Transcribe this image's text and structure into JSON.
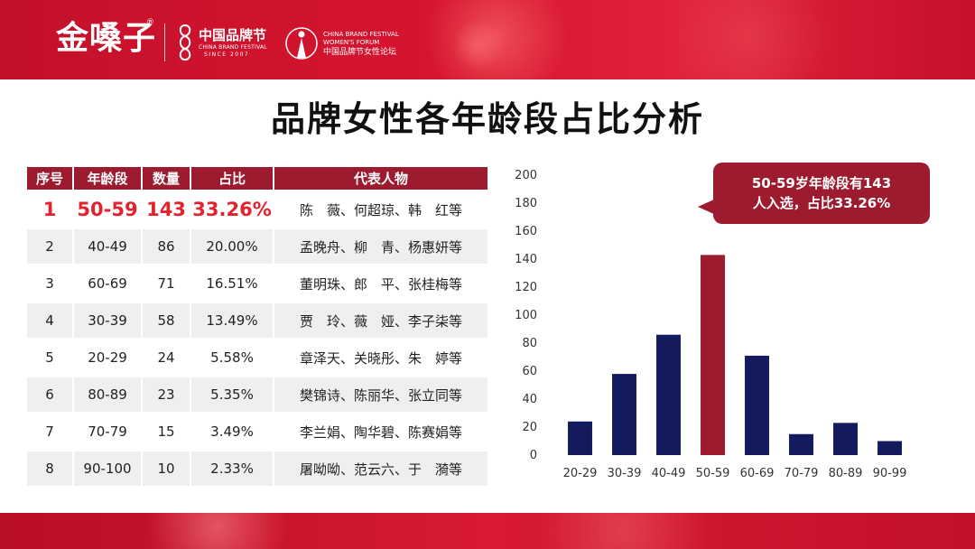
{
  "brand": {
    "logo_text": "金嗓子",
    "logo_reg": "®",
    "festival_cn": "中国品牌节",
    "festival_en": "CHINA BRAND FESTIVAL",
    "festival_since": "SINCE 2007",
    "forum_en_line1": "CHINA BRAND FESTIVAL",
    "forum_en_line2": "WOMEN'S FORUM",
    "forum_cn": "中国品牌节女性论坛"
  },
  "colors": {
    "header_red": "#d6152f",
    "table_header": "#9c1b2f",
    "highlight_text": "#e0232f",
    "bar_default": "#131a5e",
    "bar_highlight": "#9c1b2f"
  },
  "title": "品牌女性各年龄段占比分析",
  "table": {
    "headers": [
      "序号",
      "年龄段",
      "数量",
      "占比",
      "代表人物"
    ],
    "rows": [
      {
        "no": "1",
        "age": "50-59",
        "count": "143",
        "pct": "33.26%",
        "people": "陈　薇、何超琼、韩　红等"
      },
      {
        "no": "2",
        "age": "40-49",
        "count": "86",
        "pct": "20.00%",
        "people": "孟晚舟、柳　青、杨惠妍等"
      },
      {
        "no": "3",
        "age": "60-69",
        "count": "71",
        "pct": "16.51%",
        "people": "董明珠、郎　平、张桂梅等"
      },
      {
        "no": "4",
        "age": "30-39",
        "count": "58",
        "pct": "13.49%",
        "people": "贾　玲、薇　娅、李子柒等"
      },
      {
        "no": "5",
        "age": "20-29",
        "count": "24",
        "pct": "5.58%",
        "people": "章泽天、关晓彤、朱　婷等"
      },
      {
        "no": "6",
        "age": "80-89",
        "count": "23",
        "pct": "5.35%",
        "people": "樊锦诗、陈丽华、张立同等"
      },
      {
        "no": "7",
        "age": "70-79",
        "count": "15",
        "pct": "3.49%",
        "people": "李兰娟、陶华碧、陈赛娟等"
      },
      {
        "no": "8",
        "age": "90-100",
        "count": "10",
        "pct": "2.33%",
        "people": "屠呦呦、范云六、于　漪等"
      }
    ]
  },
  "callout": {
    "line1": "50-59岁年龄段有143",
    "line2": "人入选，占比33.26%"
  },
  "chart_data": {
    "type": "bar",
    "categories": [
      "20-29",
      "30-39",
      "40-49",
      "50-59",
      "60-69",
      "70-79",
      "80-89",
      "90-99"
    ],
    "values": [
      24,
      58,
      86,
      143,
      71,
      15,
      23,
      10
    ],
    "highlight_category": "50-59",
    "ylim": [
      0,
      200
    ],
    "yticks": [
      0,
      20,
      40,
      60,
      80,
      100,
      120,
      140,
      160,
      180,
      200
    ],
    "grid": false,
    "legend": "none",
    "title": "",
    "xlabel": "",
    "ylabel": ""
  }
}
